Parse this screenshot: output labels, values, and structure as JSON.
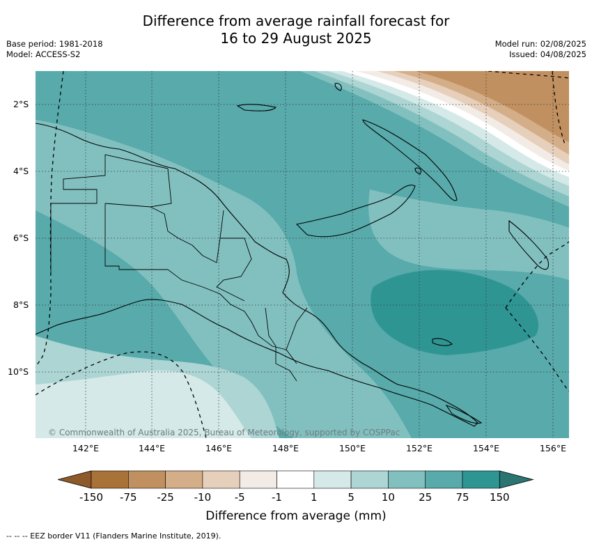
{
  "title_line1": "Difference from average rainfall forecast for",
  "title_line2": "16 to 29 August 2025",
  "base_period": "Base period: 1981-2018",
  "model": "Model: ACCESS-S2",
  "model_run": "Model run: 02/08/2025",
  "issued": "Issued: 04/08/2025",
  "latitude_labels": [
    "2°S",
    "4°S",
    "6°S",
    "8°S",
    "10°S"
  ],
  "longitude_labels": [
    "142°E",
    "144°E",
    "146°E",
    "148°E",
    "150°E",
    "152°E",
    "154°E",
    "156°E"
  ],
  "copyright": "© Commonwealth of Australia 2025, Bureau of Meteorology, supported by COSPPac",
  "colorbar": {
    "boundaries": [
      "-150",
      "-75",
      "-25",
      "-10",
      "-5",
      "-1",
      "1",
      "5",
      "10",
      "25",
      "75",
      "150"
    ],
    "colors": [
      "#8e5a2a",
      "#a87238",
      "#c09060",
      "#d4ae88",
      "#e6d0bc",
      "#f3ece6",
      "#ffffff",
      "#d4e9e8",
      "#acd5d4",
      "#82c0c0",
      "#58aaab",
      "#2f9593",
      "#2a7472"
    ],
    "label": "Difference from average (mm)"
  },
  "footer": "--  --  -- EEZ border V11 (Flanders Marine Institute, 2019)."
}
